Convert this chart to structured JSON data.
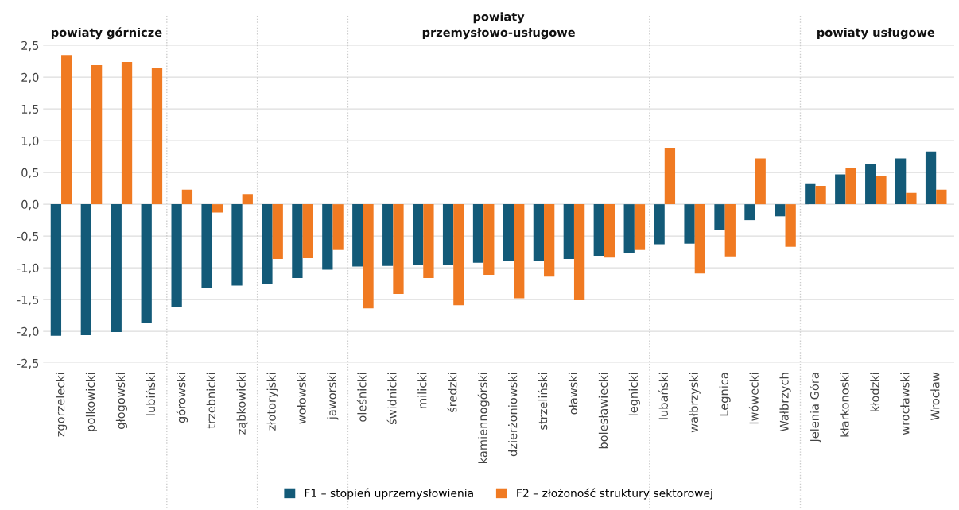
{
  "chart_data": {
    "type": "bar",
    "categories": [
      "zgorzelecki",
      "polkowicki",
      "głogowski",
      "lubiński",
      "górowski",
      "trzebnicki",
      "ząbkowicki",
      "złotoryjski",
      "wołowski",
      "jaworski",
      "oleśnicki",
      "świdnicki",
      "milicki",
      "średzki",
      "kamiennogórski",
      "dzierżoniowski",
      "strzeliński",
      "oławski",
      "bolesławiecki",
      "legnicki",
      "lubański",
      "wałbrzyski",
      "Legnica",
      "lwówecki",
      "Wałbrzych",
      "Jelenia Góra",
      "kłarkonoski",
      "kłodzki",
      "wrocławski",
      "Wrocław"
    ],
    "series": [
      {
        "name": "F1 – stopień uprzemysłowienia",
        "color": "#135a78",
        "values": [
          -2.07,
          -2.06,
          -2.01,
          -1.87,
          -1.62,
          -1.31,
          -1.28,
          -1.25,
          -1.16,
          -1.03,
          -0.98,
          -0.97,
          -0.96,
          -0.96,
          -0.92,
          -0.9,
          -0.9,
          -0.86,
          -0.81,
          -0.77,
          -0.63,
          -0.62,
          -0.4,
          -0.25,
          -0.19,
          0.33,
          0.47,
          0.64,
          0.72,
          0.83
        ]
      },
      {
        "name": "F2 – złożoność struktury sektorowej",
        "color": "#f07a22",
        "values": [
          2.35,
          2.19,
          2.24,
          2.15,
          0.23,
          -0.13,
          0.16,
          -0.86,
          -0.85,
          -0.72,
          -1.64,
          -1.41,
          -1.16,
          -1.59,
          -1.11,
          -1.48,
          -1.14,
          -1.51,
          -0.84,
          -0.72,
          0.89,
          -1.09,
          -0.82,
          0.72,
          -0.67,
          0.29,
          0.57,
          0.44,
          0.18,
          0.23
        ]
      }
    ],
    "ylim": [
      -2.5,
      2.5
    ],
    "yticks": [
      {
        "value": -2.5,
        "label": "-2,5"
      },
      {
        "value": -2.0,
        "label": "-2,0"
      },
      {
        "value": -1.5,
        "label": "-1,5"
      },
      {
        "value": -1.0,
        "label": "-1,0"
      },
      {
        "value": -0.5,
        "label": "-0,5"
      },
      {
        "value": 0.0,
        "label": "0,0"
      },
      {
        "value": 0.5,
        "label": "0,5"
      },
      {
        "value": 1.0,
        "label": "1,0"
      },
      {
        "value": 1.5,
        "label": "1,5"
      },
      {
        "value": 2.0,
        "label": "2,0"
      },
      {
        "value": 2.5,
        "label": "2,5"
      }
    ],
    "annotations": [
      "powiaty górnicze",
      "powiaty\nprzemysłowo-usługowe",
      "powiaty usługowe"
    ],
    "grid": "y",
    "legend": "bottom"
  }
}
